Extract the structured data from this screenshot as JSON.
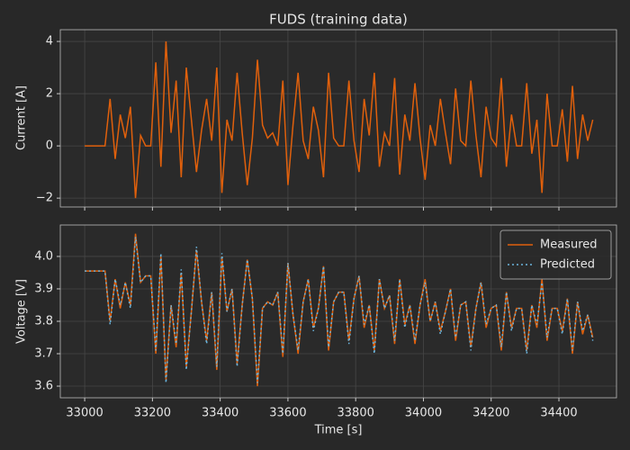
{
  "chart_data": [
    {
      "type": "line",
      "title": "FUDS (training data)",
      "ylabel": "Current [A]",
      "grid": true,
      "xlim": [
        32928,
        34570
      ],
      "ylim": [
        -2.34,
        4.45
      ],
      "yticks": [
        {
          "value": -2,
          "label": "−2"
        },
        0,
        2,
        4
      ],
      "x": [
        33000,
        33015,
        33030,
        33045,
        33060,
        33075,
        33090,
        33105,
        33120,
        33135,
        33150,
        33165,
        33180,
        33195,
        33210,
        33225,
        33240,
        33255,
        33270,
        33285,
        33300,
        33315,
        33330,
        33345,
        33360,
        33375,
        33390,
        33405,
        33420,
        33435,
        33450,
        33465,
        33480,
        33495,
        33510,
        33525,
        33540,
        33555,
        33570,
        33585,
        33600,
        33615,
        33630,
        33645,
        33660,
        33675,
        33690,
        33705,
        33720,
        33735,
        33750,
        33765,
        33780,
        33795,
        33810,
        33825,
        33840,
        33855,
        33870,
        33885,
        33900,
        33915,
        33930,
        33945,
        33960,
        33975,
        33990,
        34005,
        34020,
        34035,
        34050,
        34065,
        34080,
        34095,
        34110,
        34125,
        34140,
        34155,
        34170,
        34185,
        34200,
        34215,
        34230,
        34245,
        34260,
        34275,
        34290,
        34305,
        34320,
        34335,
        34350,
        34365,
        34380,
        34395,
        34410,
        34425,
        34440,
        34455,
        34470,
        34485,
        34500
      ],
      "series": [
        {
          "color": "#e0600c",
          "values": [
            0,
            0,
            0,
            0,
            0,
            1.8,
            -0.5,
            1.2,
            0.3,
            1.5,
            -2.0,
            0.4,
            0,
            0,
            3.2,
            -0.8,
            4.0,
            0.5,
            2.5,
            -1.2,
            3.0,
            1.0,
            -1.0,
            0.6,
            1.8,
            0.2,
            3.0,
            -1.8,
            1.0,
            0.2,
            2.8,
            0.5,
            -1.5,
            0.3,
            3.3,
            0.8,
            0.3,
            0.5,
            0,
            2.5,
            -1.5,
            0.8,
            2.8,
            0.2,
            -0.5,
            1.5,
            0.6,
            -1.2,
            2.8,
            0.3,
            0,
            0,
            2.5,
            0.2,
            -1.0,
            1.8,
            0.4,
            2.8,
            -0.8,
            0.5,
            0,
            2.6,
            -1.1,
            1.2,
            0.2,
            2.4,
            0.3,
            -1.3,
            0.8,
            0,
            1.8,
            0.5,
            -0.7,
            2.2,
            0.2,
            0,
            2.5,
            0.4,
            -1.2,
            1.5,
            0.3,
            0,
            2.6,
            -0.8,
            1.2,
            0,
            0,
            2.4,
            -0.3,
            1.0,
            -1.8,
            2.0,
            0,
            0,
            1.4,
            -0.6,
            2.3,
            -0.5,
            1.2,
            0.2,
            1.0
          ]
        }
      ]
    },
    {
      "type": "line",
      "xlabel": "Time [s]",
      "ylabel": "Voltage [V]",
      "grid": true,
      "legend": "upper right",
      "xlim": [
        32928,
        34570
      ],
      "ylim": [
        3.564,
        4.097
      ],
      "xticks": [
        33000,
        33200,
        33400,
        33600,
        33800,
        34000,
        34200,
        34400
      ],
      "yticks": [
        3.6,
        3.7,
        3.8,
        3.9,
        {
          "value": 4.0,
          "label": "4.0"
        }
      ],
      "x": [
        33000,
        33015,
        33030,
        33045,
        33060,
        33075,
        33090,
        33105,
        33120,
        33135,
        33150,
        33165,
        33180,
        33195,
        33210,
        33225,
        33240,
        33255,
        33270,
        33285,
        33300,
        33315,
        33330,
        33345,
        33360,
        33375,
        33390,
        33405,
        33420,
        33435,
        33450,
        33465,
        33480,
        33495,
        33510,
        33525,
        33540,
        33555,
        33570,
        33585,
        33600,
        33615,
        33630,
        33645,
        33660,
        33675,
        33690,
        33705,
        33720,
        33735,
        33750,
        33765,
        33780,
        33795,
        33810,
        33825,
        33840,
        33855,
        33870,
        33885,
        33900,
        33915,
        33930,
        33945,
        33960,
        33975,
        33990,
        34005,
        34020,
        34035,
        34050,
        34065,
        34080,
        34095,
        34110,
        34125,
        34140,
        34155,
        34170,
        34185,
        34200,
        34215,
        34230,
        34245,
        34260,
        34275,
        34290,
        34305,
        34320,
        34335,
        34350,
        34365,
        34380,
        34395,
        34410,
        34425,
        34440,
        34455,
        34470,
        34485,
        34500
      ],
      "series": [
        {
          "name": "Measured",
          "color": "#e0600c",
          "dash": "solid",
          "values": [
            3.955,
            3.955,
            3.955,
            3.955,
            3.955,
            3.8,
            3.93,
            3.84,
            3.92,
            3.85,
            4.07,
            3.92,
            3.94,
            3.94,
            3.7,
            4.0,
            3.62,
            3.85,
            3.72,
            3.95,
            3.66,
            3.83,
            4.02,
            3.86,
            3.74,
            3.89,
            3.65,
            4.0,
            3.83,
            3.9,
            3.67,
            3.85,
            3.99,
            3.87,
            3.6,
            3.84,
            3.86,
            3.85,
            3.89,
            3.69,
            3.98,
            3.82,
            3.7,
            3.86,
            3.93,
            3.78,
            3.84,
            3.97,
            3.71,
            3.86,
            3.89,
            3.89,
            3.74,
            3.87,
            3.94,
            3.78,
            3.85,
            3.71,
            3.93,
            3.84,
            3.88,
            3.73,
            3.93,
            3.79,
            3.85,
            3.73,
            3.85,
            3.93,
            3.8,
            3.86,
            3.77,
            3.83,
            3.9,
            3.74,
            3.85,
            3.86,
            3.72,
            3.84,
            3.92,
            3.78,
            3.84,
            3.85,
            3.71,
            3.89,
            3.78,
            3.84,
            3.84,
            3.71,
            3.85,
            3.78,
            3.93,
            3.74,
            3.84,
            3.84,
            3.77,
            3.87,
            3.7,
            3.86,
            3.76,
            3.82,
            3.75
          ]
        },
        {
          "name": "Predicted",
          "color": "#6ab4dc",
          "dash": "dotted",
          "values": [
            3.955,
            3.955,
            3.955,
            3.955,
            3.955,
            3.79,
            3.93,
            3.85,
            3.92,
            3.84,
            4.06,
            3.92,
            3.94,
            3.94,
            3.71,
            4.01,
            3.61,
            3.85,
            3.73,
            3.96,
            3.65,
            3.83,
            4.03,
            3.86,
            3.73,
            3.89,
            3.66,
            4.01,
            3.83,
            3.9,
            3.66,
            3.85,
            3.99,
            3.87,
            3.61,
            3.84,
            3.86,
            3.85,
            3.89,
            3.7,
            3.98,
            3.82,
            3.71,
            3.86,
            3.93,
            3.77,
            3.84,
            3.97,
            3.72,
            3.86,
            3.89,
            3.89,
            3.73,
            3.87,
            3.94,
            3.79,
            3.85,
            3.7,
            3.93,
            3.84,
            3.88,
            3.74,
            3.93,
            3.78,
            3.85,
            3.74,
            3.85,
            3.92,
            3.8,
            3.86,
            3.76,
            3.83,
            3.9,
            3.75,
            3.85,
            3.86,
            3.71,
            3.84,
            3.92,
            3.79,
            3.84,
            3.85,
            3.72,
            3.89,
            3.77,
            3.84,
            3.84,
            3.7,
            3.85,
            3.79,
            3.92,
            3.75,
            3.84,
            3.84,
            3.76,
            3.87,
            3.71,
            3.86,
            3.77,
            3.82,
            3.74
          ]
        }
      ]
    }
  ]
}
